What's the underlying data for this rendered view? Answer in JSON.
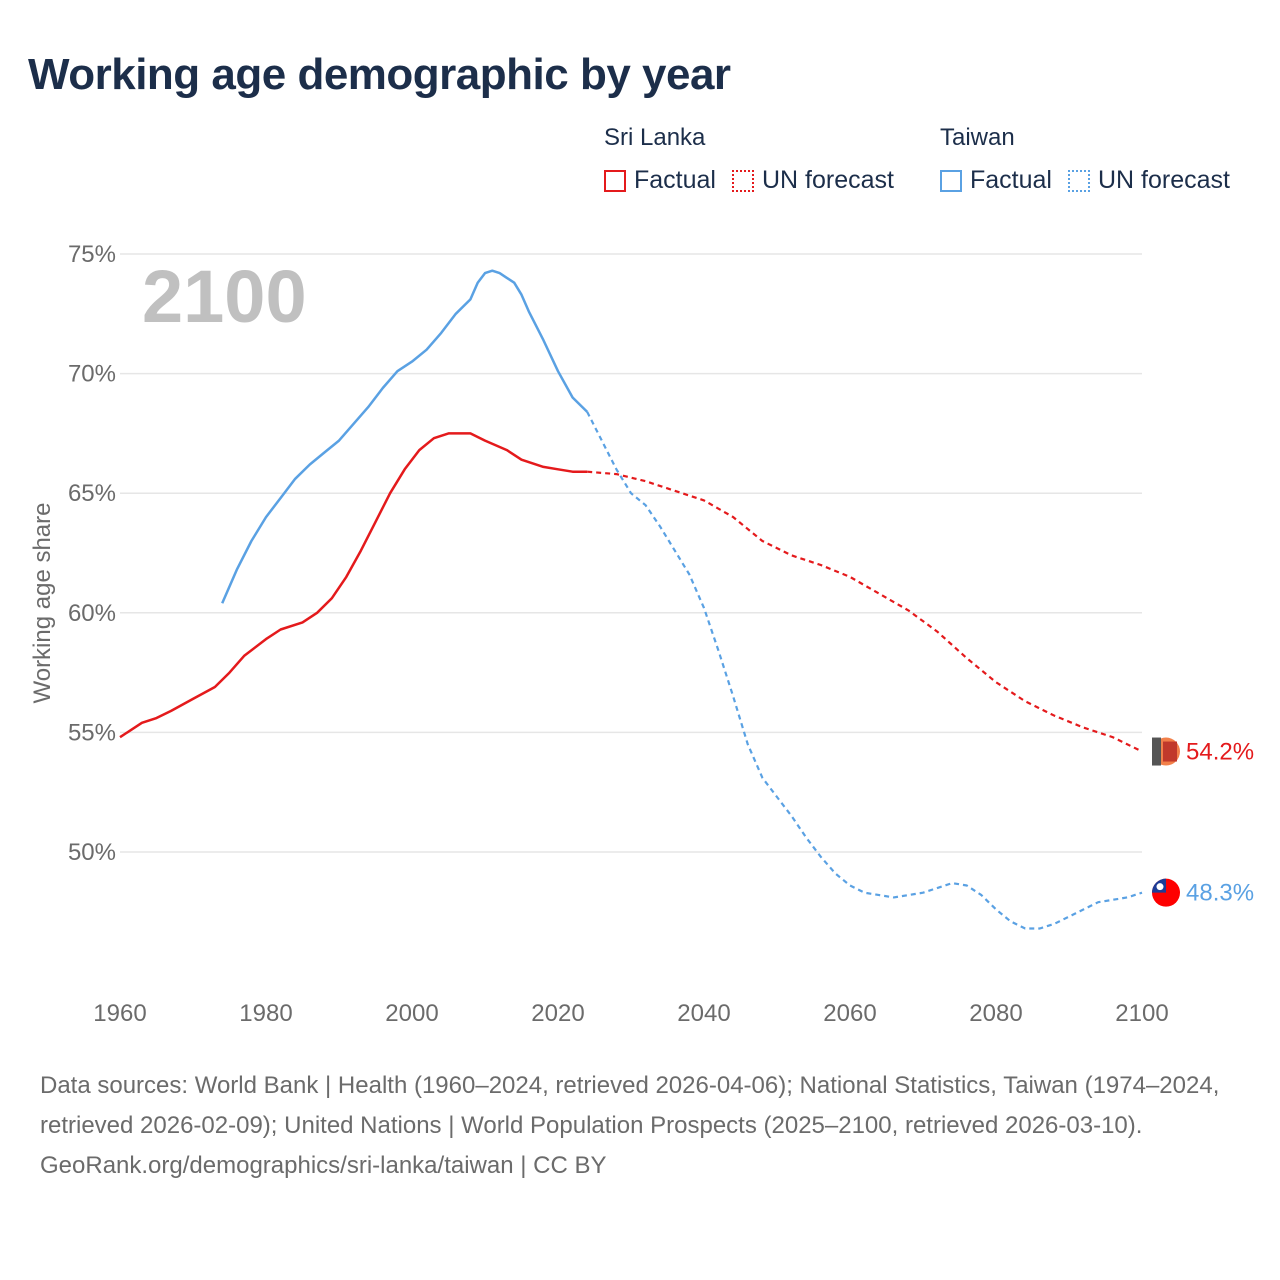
{
  "title": "Working age demographic by year",
  "legend": {
    "groups": [
      {
        "country": "Sri Lanka",
        "factual": "Factual",
        "forecast": "UN forecast",
        "color": "#e41a1c"
      },
      {
        "country": "Taiwan",
        "factual": "Factual",
        "forecast": "UN forecast",
        "color": "#5aa1e3"
      }
    ]
  },
  "chart_data": {
    "type": "line",
    "title": "Working age demographic by year",
    "xlabel": "",
    "ylabel": "Working age share",
    "xlim": [
      1960,
      2100
    ],
    "ylim": [
      45,
      75
    ],
    "x_ticks": [
      1960,
      1980,
      2000,
      2020,
      2040,
      2060,
      2080,
      2100
    ],
    "x_tick_labels": [
      "1960",
      "1980",
      "2000",
      "2020",
      "2040",
      "2060",
      "2080",
      "2100"
    ],
    "y_ticks": [
      50,
      55,
      60,
      65,
      70,
      75
    ],
    "y_tick_labels": [
      "50%",
      "55%",
      "60%",
      "65%",
      "70%",
      "75%"
    ],
    "year_watermark": "2100",
    "series": [
      {
        "name": "Sri Lanka",
        "color": "#e41a1c",
        "end_label": "54.2%",
        "factual": {
          "x": [
            1960,
            1963,
            1965,
            1967,
            1970,
            1973,
            1975,
            1977,
            1980,
            1982,
            1985,
            1987,
            1989,
            1991,
            1993,
            1995,
            1997,
            1999,
            2001,
            2003,
            2005,
            2008,
            2010,
            2013,
            2015,
            2018,
            2020,
            2022,
            2024
          ],
          "y": [
            54.8,
            55.4,
            55.6,
            55.9,
            56.4,
            56.9,
            57.5,
            58.2,
            58.9,
            59.3,
            59.6,
            60.0,
            60.6,
            61.5,
            62.6,
            63.8,
            65.0,
            66.0,
            66.8,
            67.3,
            67.5,
            67.5,
            67.2,
            66.8,
            66.4,
            66.1,
            66.0,
            65.9,
            65.9
          ]
        },
        "forecast": {
          "x": [
            2024,
            2028,
            2032,
            2036,
            2040,
            2044,
            2048,
            2052,
            2056,
            2060,
            2064,
            2068,
            2072,
            2076,
            2080,
            2084,
            2088,
            2092,
            2096,
            2100
          ],
          "y": [
            65.9,
            65.8,
            65.5,
            65.1,
            64.7,
            64.0,
            63.0,
            62.4,
            62.0,
            61.5,
            60.8,
            60.1,
            59.2,
            58.1,
            57.1,
            56.3,
            55.7,
            55.2,
            54.8,
            54.2
          ]
        }
      },
      {
        "name": "Taiwan",
        "color": "#5aa1e3",
        "end_label": "48.3%",
        "factual": {
          "x": [
            1974,
            1976,
            1978,
            1980,
            1982,
            1984,
            1986,
            1988,
            1990,
            1992,
            1994,
            1996,
            1998,
            2000,
            2002,
            2004,
            2006,
            2008,
            2009,
            2010,
            2011,
            2012,
            2013,
            2014,
            2015,
            2016,
            2018,
            2020,
            2022,
            2024
          ],
          "y": [
            60.4,
            61.8,
            63.0,
            64.0,
            64.8,
            65.6,
            66.2,
            66.7,
            67.2,
            67.9,
            68.6,
            69.4,
            70.1,
            70.5,
            71.0,
            71.7,
            72.5,
            73.1,
            73.8,
            74.2,
            74.3,
            74.2,
            74.0,
            73.8,
            73.3,
            72.6,
            71.4,
            70.1,
            69.0,
            68.4
          ]
        },
        "forecast": {
          "x": [
            2024,
            2026,
            2028,
            2030,
            2032,
            2034,
            2036,
            2038,
            2040,
            2042,
            2044,
            2046,
            2048,
            2050,
            2052,
            2054,
            2056,
            2058,
            2060,
            2062,
            2064,
            2066,
            2068,
            2070,
            2072,
            2074,
            2076,
            2078,
            2080,
            2082,
            2084,
            2086,
            2088,
            2090,
            2092,
            2094,
            2096,
            2098,
            2100
          ],
          "y": [
            68.4,
            67.2,
            66.0,
            65.0,
            64.5,
            63.6,
            62.6,
            61.6,
            60.2,
            58.4,
            56.5,
            54.5,
            53.1,
            52.3,
            51.5,
            50.6,
            49.8,
            49.1,
            48.6,
            48.3,
            48.2,
            48.1,
            48.2,
            48.3,
            48.5,
            48.7,
            48.6,
            48.2,
            47.6,
            47.1,
            46.8,
            46.8,
            47.0,
            47.3,
            47.6,
            47.9,
            48.0,
            48.1,
            48.3
          ]
        }
      }
    ]
  },
  "footer": {
    "sources": "Data sources: World Bank | Health (1960–2024, retrieved 2026-04-06); National Statistics, Taiwan (1974–2024, retrieved 2026-02-09); United Nations | World Population Prospects (2025–2100, retrieved 2026-03-10).",
    "url": "GeoRank.org/demographics/sri-lanka/taiwan | CC BY"
  }
}
